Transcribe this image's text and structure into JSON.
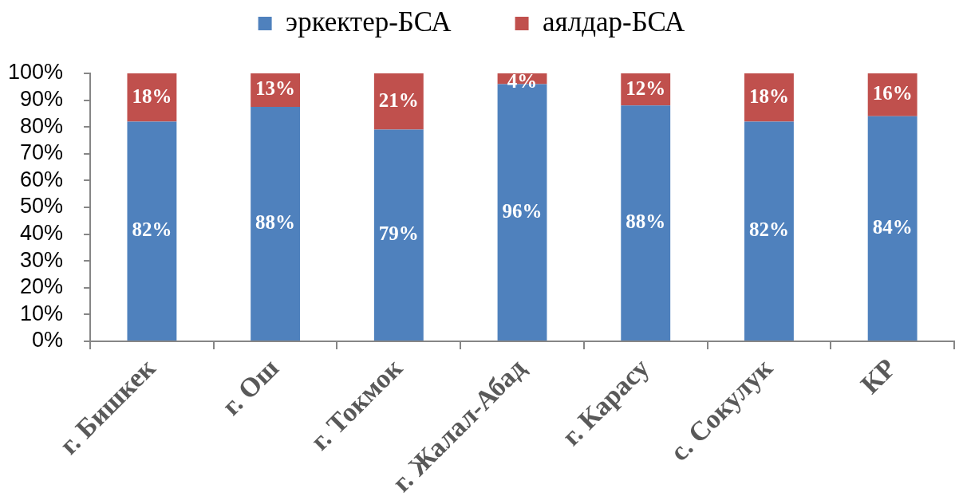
{
  "chart_data": {
    "type": "bar",
    "stacked": true,
    "legend": "top",
    "categories": [
      "г. Бишкек",
      "г. Ош",
      "г. Токмок",
      "г. Жалал-Абад",
      "г. Карасу",
      "с. Сокулук",
      "КР"
    ],
    "series": [
      {
        "name": "эркектер-БСА",
        "color": "#4f81bd",
        "values": [
          82,
          87.5,
          79,
          96,
          88,
          82,
          84
        ],
        "value_labels": [
          "82%",
          "88%",
          "79%",
          "96%",
          "88%",
          "82%",
          "84%"
        ]
      },
      {
        "name": "аялдар-БСА",
        "color": "#c0504d",
        "values": [
          18,
          12.5,
          21,
          4,
          12,
          18,
          16
        ],
        "value_labels": [
          "18%",
          "13%",
          "21%",
          "4%",
          "12%",
          "18%",
          "16%"
        ]
      }
    ],
    "ylim": [
      0,
      100
    ],
    "yticks": [
      {
        "value": 0,
        "label": "0%"
      },
      {
        "value": 10,
        "label": "10%"
      },
      {
        "value": 20,
        "label": "20%"
      },
      {
        "value": 30,
        "label": "30%"
      },
      {
        "value": 40,
        "label": "40%"
      },
      {
        "value": 50,
        "label": "50%"
      },
      {
        "value": 60,
        "label": "60%"
      },
      {
        "value": 70,
        "label": "70%"
      },
      {
        "value": 80,
        "label": "80%"
      },
      {
        "value": 90,
        "label": "90%"
      },
      {
        "value": 100,
        "label": "100%"
      }
    ]
  }
}
